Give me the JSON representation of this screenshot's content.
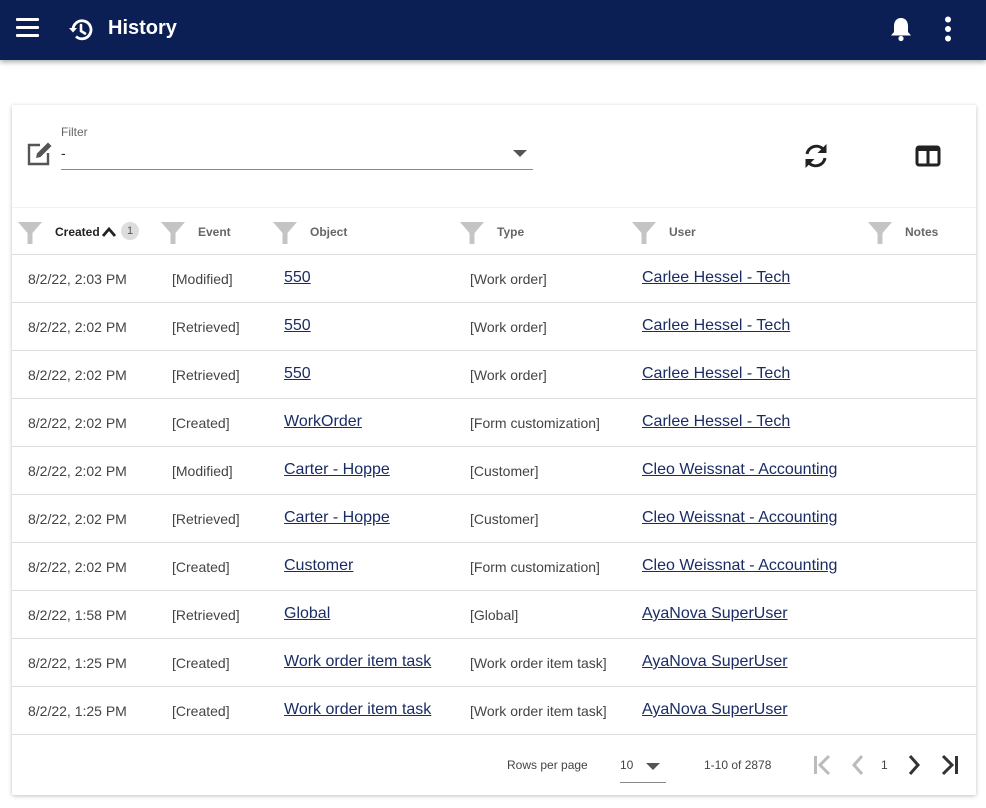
{
  "app": {
    "title": "History"
  },
  "filter": {
    "label": "Filter",
    "value": "-"
  },
  "columns": [
    {
      "key": "created",
      "label": "Created",
      "sort_badge": "1"
    },
    {
      "key": "event",
      "label": "Event"
    },
    {
      "key": "object",
      "label": "Object"
    },
    {
      "key": "type",
      "label": "Type"
    },
    {
      "key": "user",
      "label": "User"
    },
    {
      "key": "notes",
      "label": "Notes"
    }
  ],
  "rows": [
    {
      "created": "8/2/22, 2:03 PM",
      "event": "[Modified]",
      "object": "550",
      "type": "[Work order]",
      "user": "Carlee Hessel - Tech",
      "notes": ""
    },
    {
      "created": "8/2/22, 2:02 PM",
      "event": "[Retrieved]",
      "object": "550",
      "type": "[Work order]",
      "user": "Carlee Hessel - Tech",
      "notes": ""
    },
    {
      "created": "8/2/22, 2:02 PM",
      "event": "[Retrieved]",
      "object": "550",
      "type": "[Work order]",
      "user": "Carlee Hessel - Tech",
      "notes": ""
    },
    {
      "created": "8/2/22, 2:02 PM",
      "event": "[Created]",
      "object": "WorkOrder",
      "type": "[Form customization]",
      "user": "Carlee Hessel - Tech",
      "notes": ""
    },
    {
      "created": "8/2/22, 2:02 PM",
      "event": "[Modified]",
      "object": "Carter - Hoppe",
      "type": "[Customer]",
      "user": "Cleo Weissnat - Accounting",
      "notes": ""
    },
    {
      "created": "8/2/22, 2:02 PM",
      "event": "[Retrieved]",
      "object": "Carter - Hoppe",
      "type": "[Customer]",
      "user": "Cleo Weissnat - Accounting",
      "notes": ""
    },
    {
      "created": "8/2/22, 2:02 PM",
      "event": "[Created]",
      "object": "Customer",
      "type": "[Form customization]",
      "user": "Cleo Weissnat - Accounting",
      "notes": ""
    },
    {
      "created": "8/2/22, 1:58 PM",
      "event": "[Retrieved]",
      "object": "Global",
      "type": "[Global]",
      "user": "AyaNova SuperUser",
      "notes": ""
    },
    {
      "created": "8/2/22, 1:25 PM",
      "event": "[Created]",
      "object": "Work order item task",
      "type": "[Work order item task]",
      "user": "AyaNova SuperUser",
      "notes": ""
    },
    {
      "created": "8/2/22, 1:25 PM",
      "event": "[Created]",
      "object": "Work order item task",
      "type": "[Work order item task]",
      "user": "AyaNova SuperUser",
      "notes": ""
    }
  ],
  "footer": {
    "rows_per_page_label": "Rows per page",
    "rows_per_page_value": "10",
    "range": "1-10 of 2878",
    "page": "1"
  },
  "icons": {
    "menu": "menu-icon",
    "history": "history-icon",
    "bell": "bell-icon",
    "more": "more-vertical-icon",
    "edit": "edit-icon",
    "refresh": "refresh-icon",
    "columns": "columns-icon",
    "funnel": "funnel-icon"
  },
  "colors": {
    "appbar": "#0b1f55",
    "link": "#1a2c66",
    "funnel": "#c4c4c4"
  }
}
